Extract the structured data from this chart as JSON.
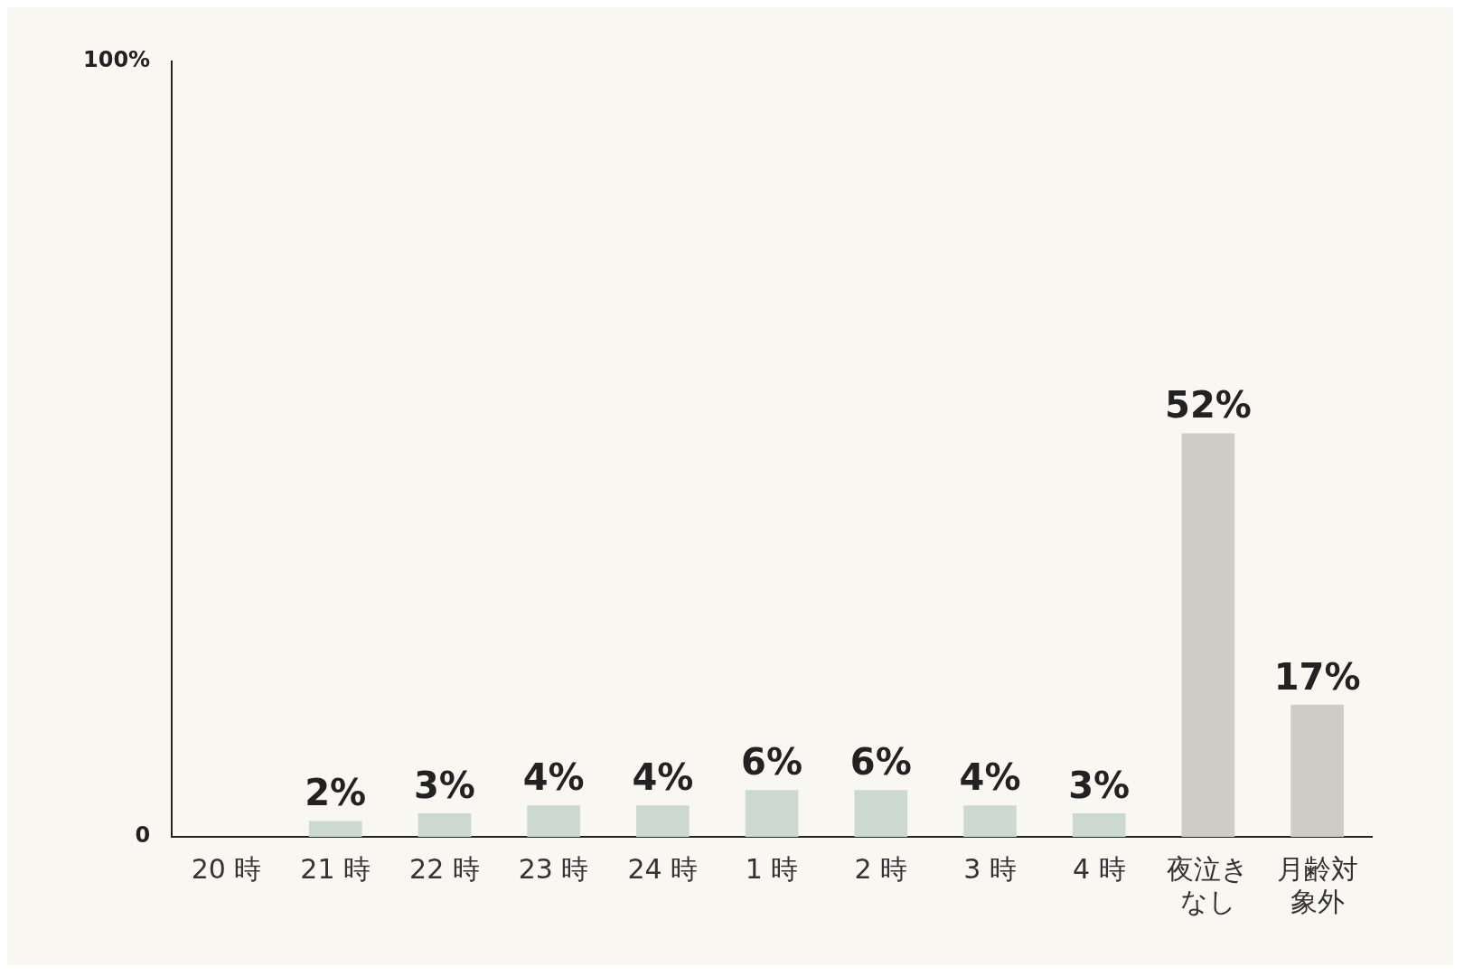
{
  "chart_data": {
    "type": "bar",
    "categories": [
      "20 時",
      "21 時",
      "22 時",
      "23 時",
      "24 時",
      "1 時",
      "2 時",
      "3 時",
      "4 時",
      "夜泣きなし",
      "月齢対象外"
    ],
    "values": [
      null,
      2,
      3,
      4,
      4,
      6,
      6,
      4,
      3,
      52,
      17
    ],
    "value_labels": [
      null,
      "2%",
      "3%",
      "4%",
      "4%",
      "6%",
      "6%",
      "4%",
      "3%",
      "52%",
      "17%"
    ],
    "colors": [
      "#cbd9d0",
      "#cbd9d0",
      "#cbd9d0",
      "#cbd9d0",
      "#cbd9d0",
      "#cbd9d0",
      "#cbd9d0",
      "#cbd9d0",
      "#cbd9d0",
      "#cfcbc6",
      "#cfcbc6"
    ],
    "ylim": [
      0,
      100
    ],
    "yticks": [
      0,
      {
        "value": 100,
        "label": "100%"
      }
    ],
    "grid": false,
    "legend": false
  }
}
